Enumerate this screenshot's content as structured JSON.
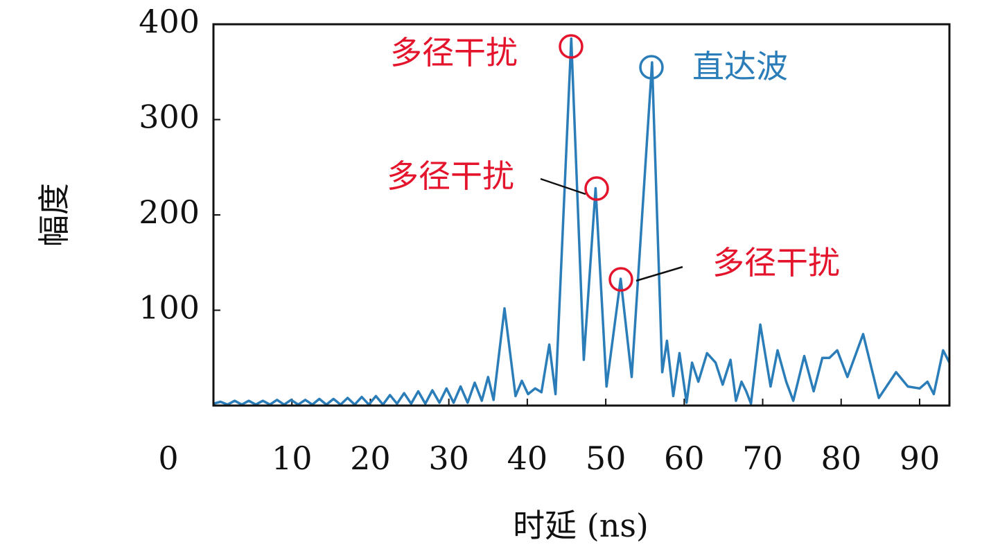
{
  "chart_data": {
    "type": "line",
    "xlabel": "时延 (ns)",
    "ylabel": "幅度",
    "x": [
      0,
      0.9,
      1.8,
      2.7,
      3.6,
      4.5,
      5.4,
      6.3,
      7.2,
      8.1,
      9,
      9.9,
      10.8,
      11.7,
      12.6,
      13.5,
      14.4,
      15.3,
      16.2,
      17.1,
      18,
      18.9,
      19.8,
      20.7,
      21.6,
      22.5,
      23.4,
      24.3,
      25.2,
      26.1,
      27,
      27.9,
      28.8,
      29.7,
      30.6,
      31.5,
      32.4,
      33.3,
      34.2,
      35,
      35.7,
      37.1,
      38.5,
      39.3,
      40.1,
      41,
      41.8,
      42.8,
      43.6,
      45.6,
      47.2,
      48.7,
      50.1,
      51.9,
      53.3,
      55.9,
      57.2,
      57.8,
      58.6,
      59.4,
      60.3,
      61,
      61.8,
      62.9,
      64,
      64.9,
      65.9,
      66.6,
      67.3,
      67.9,
      68.5,
      69.7,
      71,
      71.9,
      73,
      73.9,
      75.3,
      76.5,
      77.6,
      78.5,
      79.5,
      80.8,
      82.8,
      84.8,
      87,
      88.5,
      90,
      91,
      91.8,
      93,
      93.8
    ],
    "series": [
      {
        "color": "#2a7db8",
        "values": [
          2,
          4,
          1,
          5,
          1,
          5,
          1,
          5,
          1,
          6,
          1,
          6,
          1,
          6,
          1,
          7,
          1,
          7,
          1,
          8,
          1,
          9,
          1,
          10,
          1,
          11,
          2,
          13,
          2,
          15,
          2,
          16,
          3,
          18,
          3,
          20,
          3,
          24,
          5,
          30,
          6,
          102,
          10,
          26,
          12,
          18,
          14,
          64,
          12,
          385,
          48,
          228,
          20,
          133,
          30,
          360,
          35,
          68,
          10,
          55,
          3,
          45,
          25,
          55,
          45,
          22,
          48,
          5,
          25,
          15,
          2,
          85,
          20,
          58,
          25,
          5,
          52,
          15,
          50,
          50,
          58,
          30,
          75,
          8,
          35,
          20,
          18,
          25,
          12,
          58,
          45
        ]
      }
    ],
    "xlim": [
      0,
      93.8
    ],
    "ylim": [
      0,
      400
    ],
    "xticks": [
      0,
      10,
      20,
      30,
      40,
      50,
      60,
      70,
      80,
      90
    ],
    "yticks": [
      100,
      200,
      300,
      400
    ],
    "annotations": [
      {
        "text": "多径干扰",
        "color": "#e4142c"
      },
      {
        "text": "多径干扰",
        "color": "#e4142c"
      },
      {
        "text": "多径干扰",
        "color": "#e4142c"
      },
      {
        "text": "直达波",
        "color": "#2a7db8"
      }
    ]
  }
}
